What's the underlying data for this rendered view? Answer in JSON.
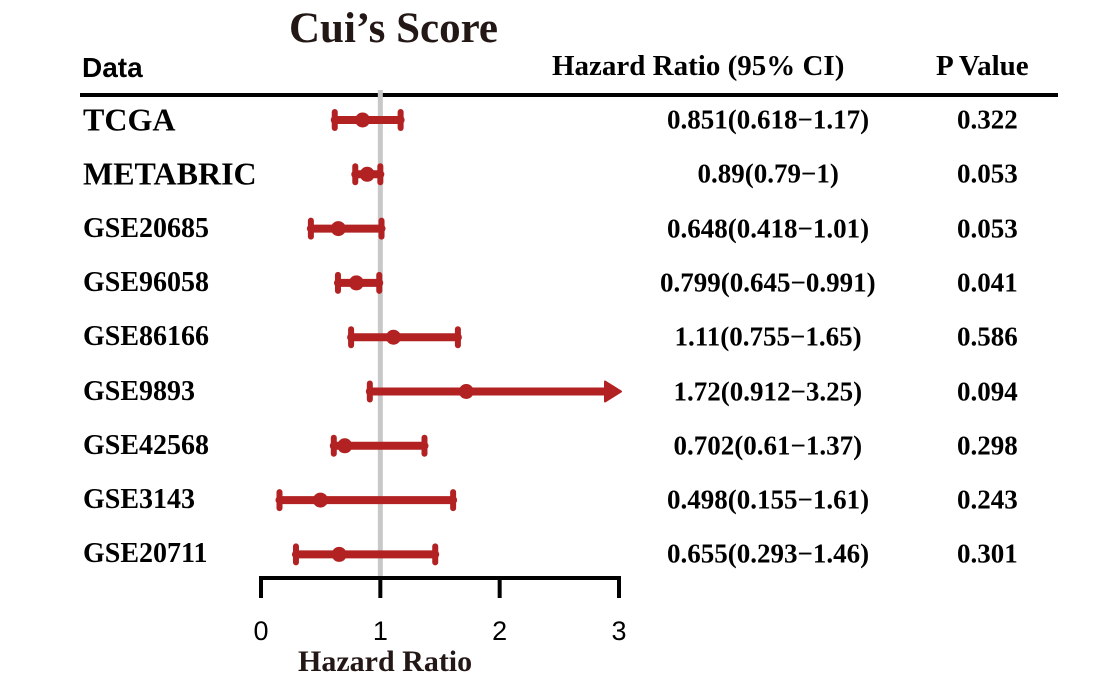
{
  "chart_data": {
    "type": "forest",
    "title": "Cui’s Score",
    "xlabel": "Hazard Ratio",
    "xlim": [
      0,
      3
    ],
    "xticks": [
      "0",
      "1",
      "2",
      "3"
    ],
    "reference_line": 1,
    "columns": {
      "data": "Data",
      "hr": "Hazard Ratio  (95% CI)",
      "p": "P Value"
    },
    "rows": [
      {
        "label": "TCGA",
        "hr": 0.851,
        "lower": 0.618,
        "upper": 1.17,
        "hr_text": "0.851(0.618−1.17)",
        "p": "0.322"
      },
      {
        "label": "METABRIC",
        "hr": 0.89,
        "lower": 0.79,
        "upper": 1,
        "hr_text": "0.89(0.79−1)",
        "p": "0.053"
      },
      {
        "label": "GSE20685",
        "hr": 0.648,
        "lower": 0.418,
        "upper": 1.01,
        "hr_text": "0.648(0.418−1.01)",
        "p": "0.053"
      },
      {
        "label": "GSE96058",
        "hr": 0.799,
        "lower": 0.645,
        "upper": 0.991,
        "hr_text": "0.799(0.645−0.991)",
        "p": "0.041"
      },
      {
        "label": "GSE86166",
        "hr": 1.11,
        "lower": 0.755,
        "upper": 1.65,
        "hr_text": "1.11(0.755−1.65)",
        "p": "0.586"
      },
      {
        "label": "GSE9893",
        "hr": 1.72,
        "lower": 0.912,
        "upper": 3.25,
        "hr_text": "1.72(0.912−3.25)",
        "p": "0.094"
      },
      {
        "label": "GSE42568",
        "hr": 0.702,
        "lower": 0.61,
        "upper": 1.37,
        "hr_text": "0.702(0.61−1.37)",
        "p": "0.298"
      },
      {
        "label": "GSE3143",
        "hr": 0.498,
        "lower": 0.155,
        "upper": 1.61,
        "hr_text": "0.498(0.155−1.61)",
        "p": "0.243"
      },
      {
        "label": "GSE20711",
        "hr": 0.655,
        "lower": 0.293,
        "upper": 1.46,
        "hr_text": "0.655(0.293−1.46)",
        "p": "0.301"
      }
    ],
    "colors": {
      "ci": "#b22222",
      "reference": "#c8c8c8",
      "axis": "#000000",
      "title": "#231815"
    }
  }
}
